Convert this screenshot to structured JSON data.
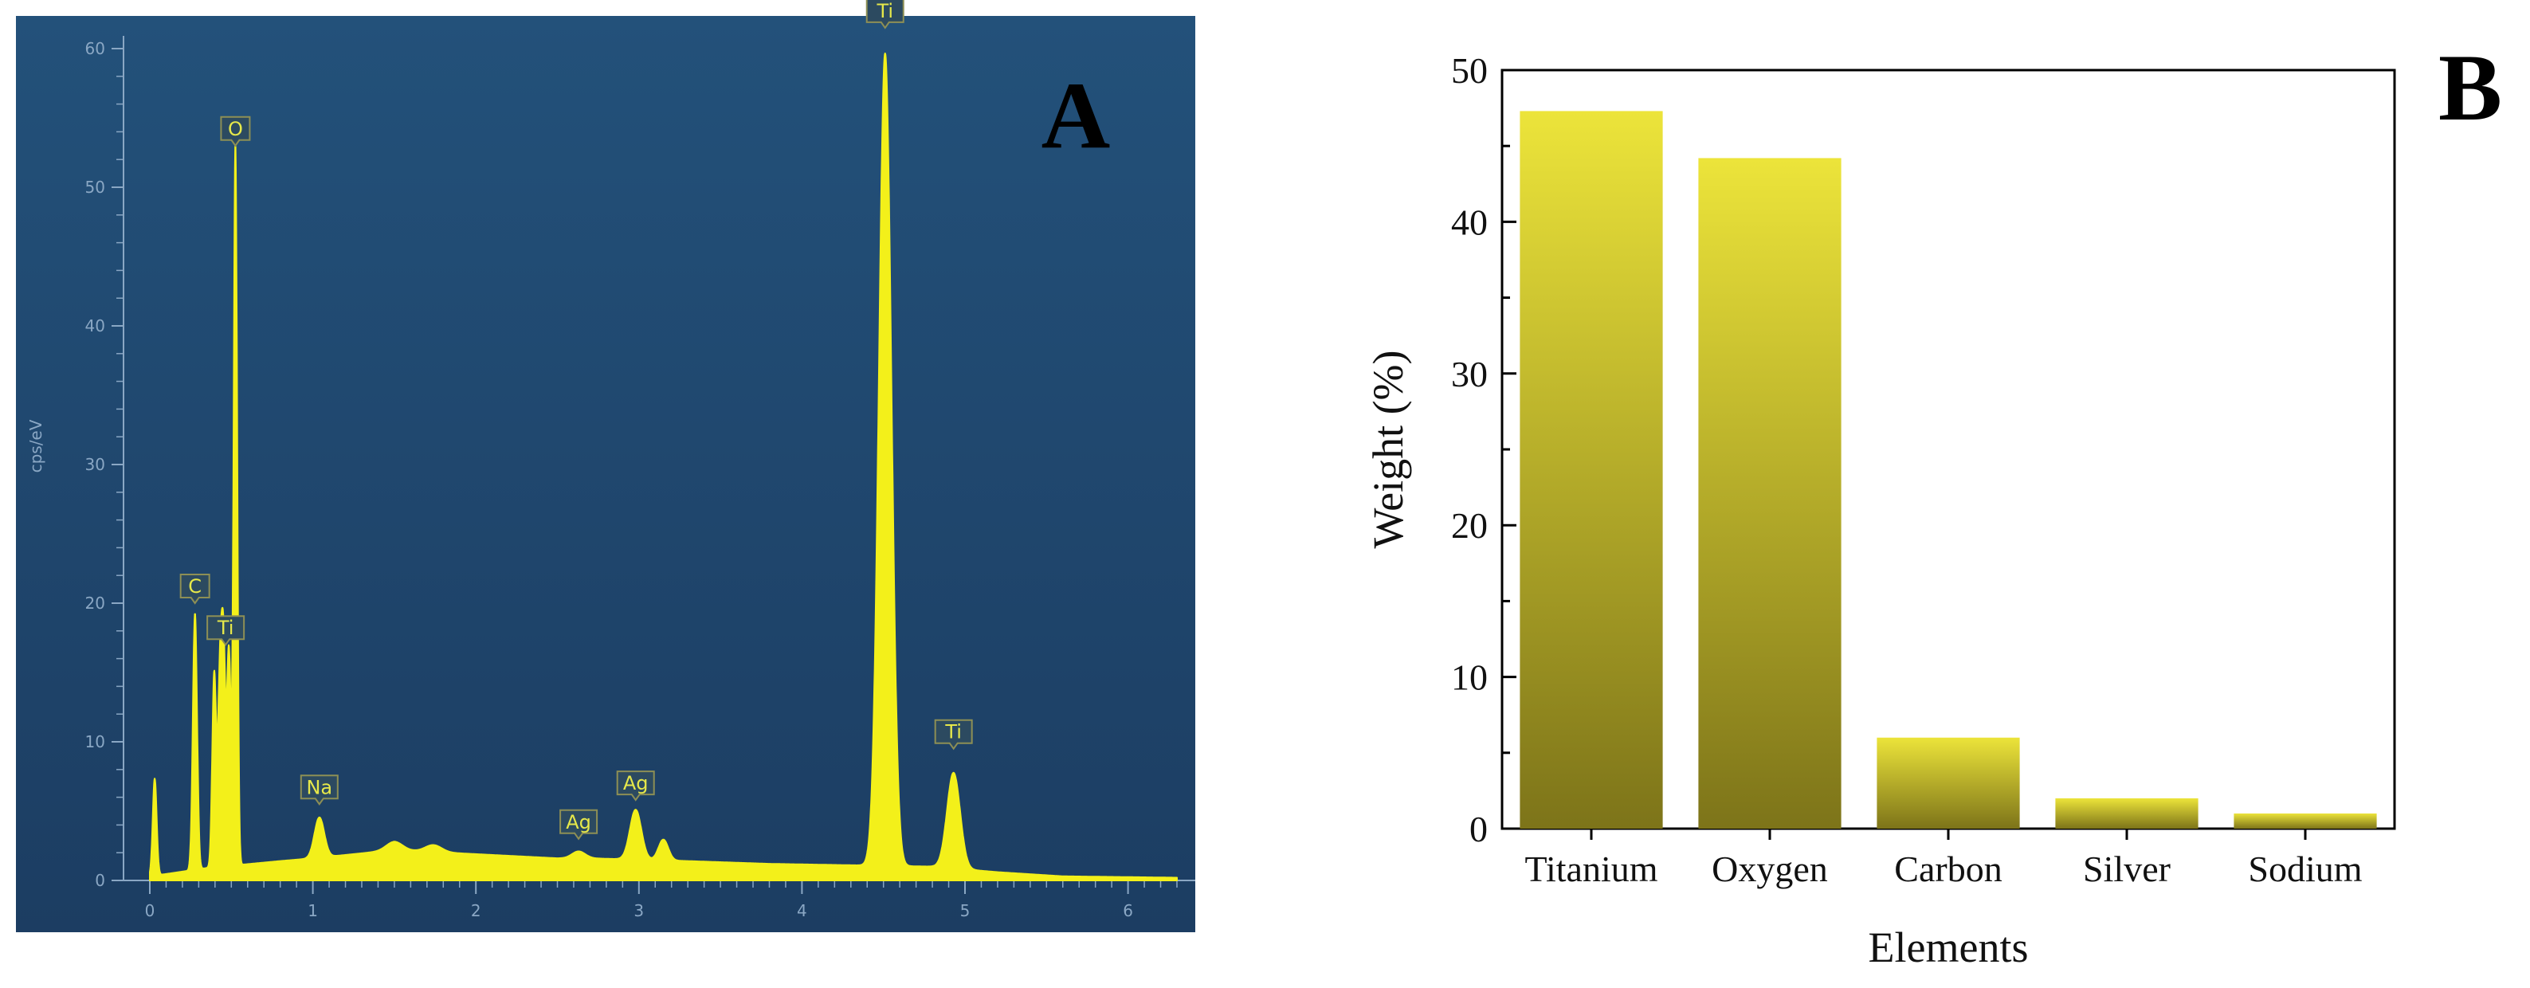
{
  "chart_data": [
    {
      "type": "line",
      "panel_label": "A",
      "title": "",
      "xlabel": "",
      "ylabel": "cps/eV",
      "xlim": [
        0,
        6.3
      ],
      "ylim": [
        0,
        60
      ],
      "x_ticks": [
        "0",
        "1",
        "2",
        "3",
        "4",
        "5",
        "6"
      ],
      "y_ticks": [
        "0",
        "10",
        "20",
        "30",
        "40",
        "50",
        "60"
      ],
      "colors": {
        "background_top": "#23517a",
        "background_bottom": "#1c3d62",
        "signal": "#f3f01a",
        "axis": "#8aa7c4",
        "label_fill": "#2c4a60",
        "label_stroke": "#8d8f55"
      },
      "spectrum": {
        "baseline": [
          [
            0,
            0.3
          ],
          [
            0.12,
            0.5
          ],
          [
            0.35,
            0.9
          ],
          [
            0.8,
            1.4
          ],
          [
            1.0,
            1.6
          ],
          [
            1.5,
            2.2
          ],
          [
            2.0,
            1.9
          ],
          [
            2.5,
            1.6
          ],
          [
            2.7,
            1.6
          ],
          [
            3.3,
            1.4
          ],
          [
            3.8,
            1.2
          ],
          [
            4.3,
            1.1
          ],
          [
            4.8,
            1.0
          ],
          [
            5.2,
            0.6
          ],
          [
            5.6,
            0.3
          ],
          [
            6.3,
            0.2
          ]
        ],
        "peaks": [
          {
            "x": 0.03,
            "h": 7.0,
            "w": 0.012
          },
          {
            "x": 0.277,
            "h": 18.5,
            "w": 0.013
          },
          {
            "x": 0.395,
            "h": 14.0,
            "w": 0.012
          },
          {
            "x": 0.43,
            "h": 13.0,
            "w": 0.012
          },
          {
            "x": 0.452,
            "h": 15.0,
            "w": 0.012
          },
          {
            "x": 0.485,
            "h": 15.5,
            "w": 0.012
          },
          {
            "x": 0.525,
            "h": 52.0,
            "w": 0.011
          },
          {
            "x": 1.04,
            "h": 2.9,
            "w": 0.03
          },
          {
            "x": 1.5,
            "h": 0.6,
            "w": 0.05
          },
          {
            "x": 1.74,
            "h": 0.5,
            "w": 0.05
          },
          {
            "x": 2.63,
            "h": 0.5,
            "w": 0.04
          },
          {
            "x": 2.98,
            "h": 3.6,
            "w": 0.035
          },
          {
            "x": 3.15,
            "h": 1.5,
            "w": 0.03
          },
          {
            "x": 4.51,
            "h": 58.6,
            "w": 0.038
          },
          {
            "x": 4.93,
            "h": 6.9,
            "w": 0.04
          }
        ]
      },
      "peak_labels": [
        {
          "text": "O",
          "x": 0.525,
          "y": 53.0
        },
        {
          "text": "Ti",
          "x": 4.51,
          "y": 61.5
        },
        {
          "text": "C",
          "x": 0.277,
          "y": 20.0
        },
        {
          "text": "Ti",
          "x": 0.465,
          "y": 17.0
        },
        {
          "text": "Na",
          "x": 1.04,
          "y": 5.5
        },
        {
          "text": "Ag",
          "x": 2.63,
          "y": 3.0
        },
        {
          "text": "Ag",
          "x": 2.98,
          "y": 5.8
        },
        {
          "text": "Ti",
          "x": 4.93,
          "y": 9.5
        }
      ]
    },
    {
      "type": "bar",
      "panel_label": "B",
      "title": "",
      "xlabel": "Elements",
      "ylabel": "Weight (%)",
      "categories": [
        "Titanium",
        "Oxygen",
        "Carbon",
        "Silver",
        "Sodium"
      ],
      "values": [
        47.3,
        44.2,
        6.0,
        2.0,
        1.0
      ],
      "ylim": [
        0,
        50
      ],
      "y_ticks": [
        "0",
        "10",
        "20",
        "30",
        "40",
        "50"
      ],
      "grid": false,
      "colors": {
        "bar_top": "#ece43a",
        "bar_bottom": "#7d7419",
        "axis": "#000000"
      }
    }
  ]
}
